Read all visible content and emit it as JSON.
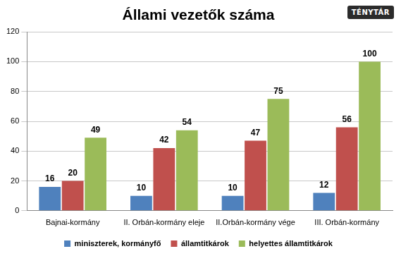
{
  "chart_data": {
    "type": "bar",
    "title": "Állami vezetők száma",
    "annotations": [
      "TÉNYTÁR"
    ],
    "categories": [
      "Bajnai-kormány",
      "II. Orbán-kormány eleje",
      "II.Orbán-kormány vége",
      "III. Orbán-kormány"
    ],
    "series": [
      {
        "name": "miniszterek, kormányfő",
        "color": "#4f81bd",
        "values": [
          16,
          10,
          10,
          12
        ]
      },
      {
        "name": "államtitkárok",
        "color": "#c0504d",
        "values": [
          20,
          42,
          47,
          56
        ]
      },
      {
        "name": "helyettes államtitkárok",
        "color": "#9bbb59",
        "values": [
          49,
          54,
          75,
          100
        ]
      }
    ],
    "ylim": [
      0,
      120
    ],
    "yticks": [
      0,
      20,
      40,
      60,
      80,
      100,
      120
    ],
    "grid": true,
    "legend": "bottom",
    "data_labels": true
  }
}
